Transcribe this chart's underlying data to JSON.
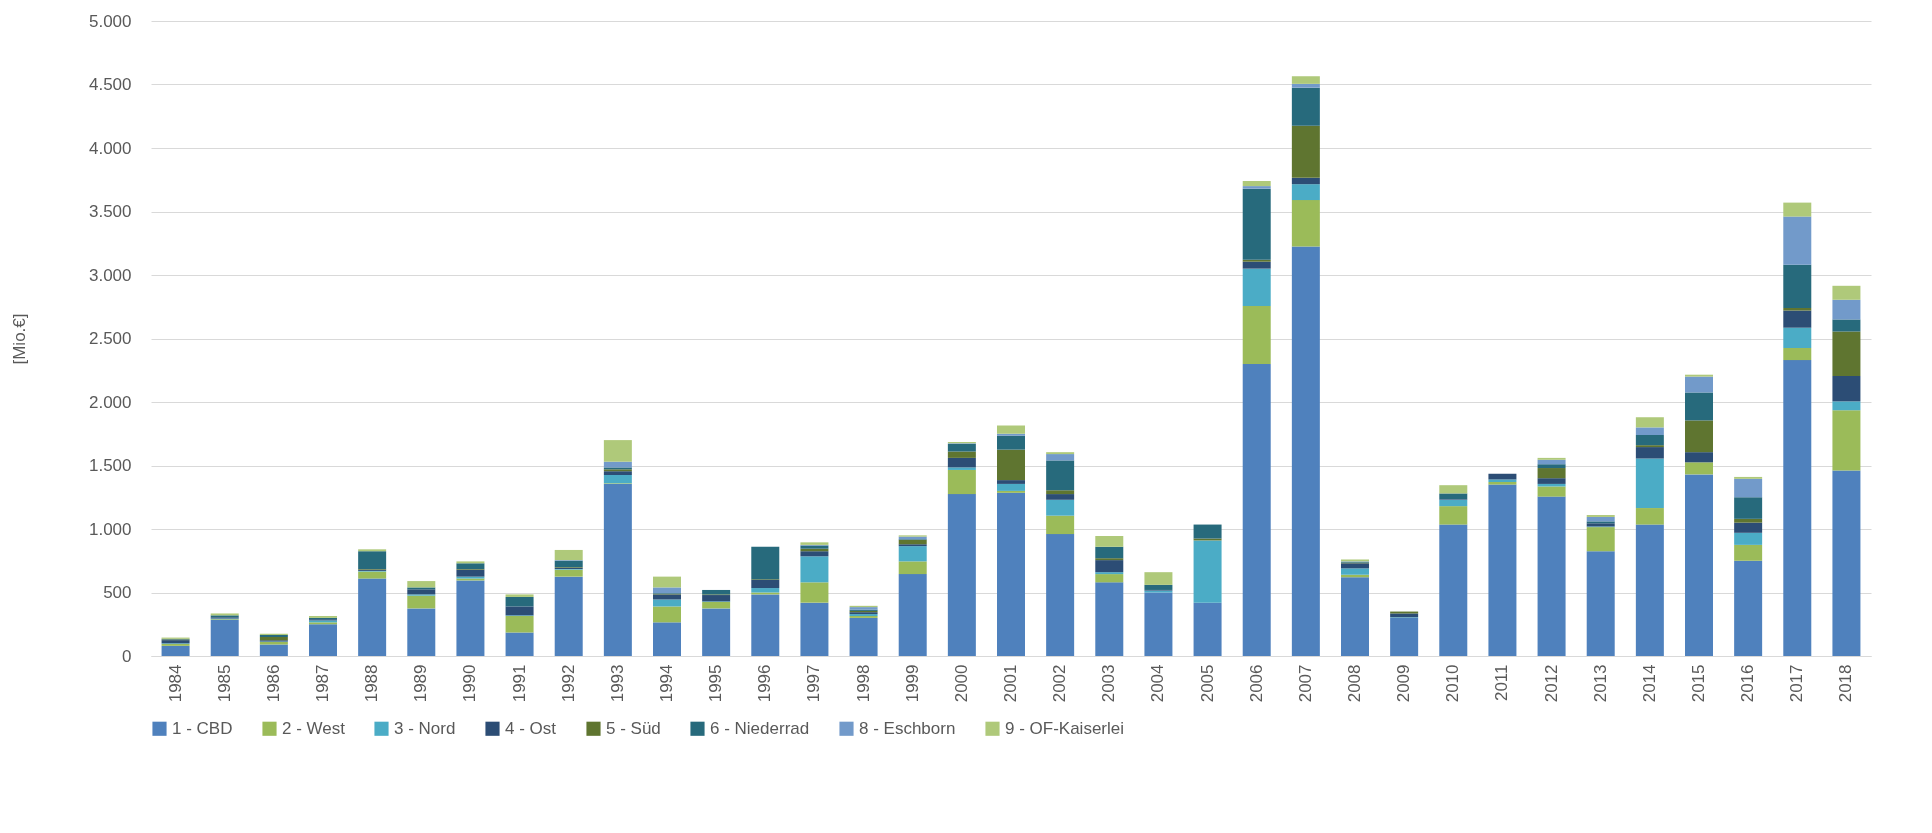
{
  "chart_data": {
    "type": "bar",
    "stacked": true,
    "ylabel": "[Mio.€]",
    "grid": "y",
    "legend": "bottom",
    "categories": [
      "1984",
      "1985",
      "1986",
      "1987",
      "1988",
      "1989",
      "1990",
      "1991",
      "1992",
      "1993",
      "1994",
      "1995",
      "1996",
      "1997",
      "1998",
      "1999",
      "2000",
      "2001",
      "2002",
      "2003",
      "2004",
      "2005",
      "2006",
      "2007",
      "2008",
      "2009",
      "2010",
      "2011",
      "2012",
      "2013",
      "2014",
      "2015",
      "2016",
      "2017",
      "2018"
    ],
    "ylim": [
      0,
      5000
    ],
    "yticks": [
      0,
      500,
      {
        "value": 1000,
        "label": "1.000"
      },
      {
        "value": 1500,
        "label": "1.500"
      },
      {
        "value": 2000,
        "label": "2.000"
      },
      {
        "value": 2500,
        "label": "2.500"
      },
      {
        "value": 3000,
        "label": "3.000"
      },
      {
        "value": 3500,
        "label": "3.500"
      },
      {
        "value": 4000,
        "label": "4.000"
      },
      {
        "value": 4500,
        "label": "4.500"
      },
      {
        "value": 5000,
        "label": "5.000"
      }
    ],
    "series": [
      {
        "name": "1 - CBD",
        "color": "#4f81bd",
        "values": [
          80,
          285,
          90,
          250,
          610,
          375,
          595,
          185,
          625,
          1355,
          265,
          375,
          485,
          420,
          300,
          645,
          1275,
          1285,
          960,
          580,
          500,
          420,
          2300,
          3225,
          620,
          300,
          1035,
          1350,
          1255,
          825,
          1035,
          1430,
          750,
          2330,
          1460
        ]
      },
      {
        "name": "2 - West",
        "color": "#9bbb59",
        "values": [
          15,
          5,
          20,
          15,
          55,
          100,
          15,
          130,
          55,
          5,
          125,
          50,
          15,
          160,
          15,
          100,
          190,
          15,
          145,
          65,
          0,
          0,
          455,
          365,
          20,
          0,
          145,
          20,
          80,
          190,
          130,
          95,
          125,
          95,
          475
        ]
      },
      {
        "name": "3 - Nord",
        "color": "#4bacc6",
        "values": [
          5,
          5,
          5,
          15,
          5,
          10,
          15,
          5,
          5,
          65,
          55,
          5,
          35,
          205,
          15,
          120,
          20,
          55,
          125,
          15,
          15,
          490,
          295,
          125,
          50,
          5,
          50,
          20,
          20,
          5,
          390,
          0,
          95,
          160,
          70
        ]
      },
      {
        "name": "4 - Ost",
        "color": "#2c4d75",
        "values": [
          25,
          10,
          10,
          10,
          10,
          40,
          55,
          70,
          10,
          30,
          40,
          50,
          65,
          40,
          15,
          15,
          75,
          30,
          45,
          95,
          5,
          0,
          55,
          50,
          40,
          30,
          5,
          45,
          45,
          25,
          90,
          80,
          80,
          135,
          200
        ]
      },
      {
        "name": "5 - Süd",
        "color": "#5f7530",
        "values": [
          5,
          0,
          25,
          0,
          5,
          0,
          5,
          0,
          5,
          15,
          5,
          5,
          5,
          20,
          10,
          35,
          50,
          240,
          30,
          15,
          0,
          15,
          15,
          410,
          5,
          15,
          0,
          0,
          80,
          0,
          15,
          250,
          30,
          20,
          350
        ]
      },
      {
        "name": "6 - Niederrad",
        "color": "#276a7c",
        "values": [
          5,
          15,
          15,
          10,
          140,
          15,
          45,
          75,
          50,
          15,
          5,
          35,
          255,
          25,
          10,
          5,
          60,
          110,
          235,
          90,
          40,
          110,
          560,
          300,
          5,
          0,
          45,
          0,
          30,
          15,
          80,
          220,
          170,
          340,
          95
        ]
      },
      {
        "name": "8 - Eschborn",
        "color": "#729aca",
        "values": [
          0,
          0,
          0,
          0,
          0,
          0,
          0,
          0,
          5,
          45,
          45,
          0,
          0,
          5,
          20,
          20,
          5,
          15,
          50,
          0,
          0,
          0,
          20,
          30,
          5,
          0,
          0,
          0,
          35,
          35,
          60,
          125,
          145,
          380,
          155
        ]
      },
      {
        "name": "9 - OF-Kaiserlei",
        "color": "#afc97a",
        "values": [
          10,
          15,
          10,
          15,
          15,
          50,
          15,
          20,
          80,
          170,
          85,
          0,
          0,
          20,
          10,
          10,
          10,
          65,
          15,
          85,
          100,
          0,
          40,
          60,
          15,
          0,
          65,
          0,
          15,
          15,
          80,
          15,
          15,
          110,
          110
        ]
      }
    ]
  }
}
